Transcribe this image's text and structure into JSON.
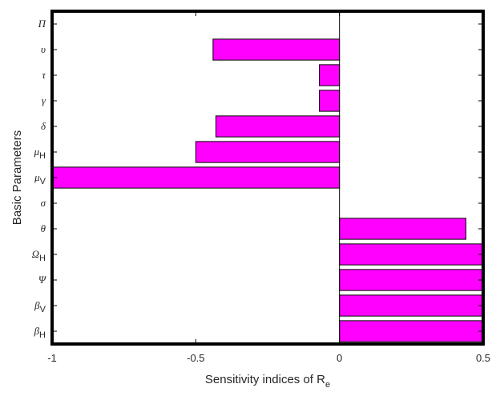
{
  "chart_data": {
    "type": "bar",
    "orientation": "horizontal",
    "categories": [
      {
        "base": "Π",
        "sub": ""
      },
      {
        "base": "υ",
        "sub": ""
      },
      {
        "base": "τ",
        "sub": ""
      },
      {
        "base": "γ",
        "sub": ""
      },
      {
        "base": "δ",
        "sub": ""
      },
      {
        "base": "μ",
        "sub": "H"
      },
      {
        "base": "μ",
        "sub": "V"
      },
      {
        "base": "σ",
        "sub": ""
      },
      {
        "base": "θ",
        "sub": ""
      },
      {
        "base": "Ω",
        "sub": "H"
      },
      {
        "base": "Ψ",
        "sub": ""
      },
      {
        "base": "β",
        "sub": "V"
      },
      {
        "base": "β",
        "sub": "H"
      }
    ],
    "values": [
      0,
      -0.44,
      -0.07,
      -0.07,
      -0.43,
      -0.5,
      -1.0,
      0,
      0.44,
      0.5,
      0.5,
      0.5,
      0.5
    ],
    "xlim": [
      -1,
      0.5
    ],
    "xticks": [
      -1,
      -0.5,
      0,
      0.5
    ],
    "xtick_labels": [
      "-1",
      "-0.5",
      "0",
      "0.5"
    ],
    "xlabel": {
      "text": "Sensitivity indices of R",
      "sub": "e"
    },
    "ylabel": "Basic Parameters",
    "grid": false,
    "bar_color": "#ff00ff",
    "bar_edge_color": "#000000"
  }
}
